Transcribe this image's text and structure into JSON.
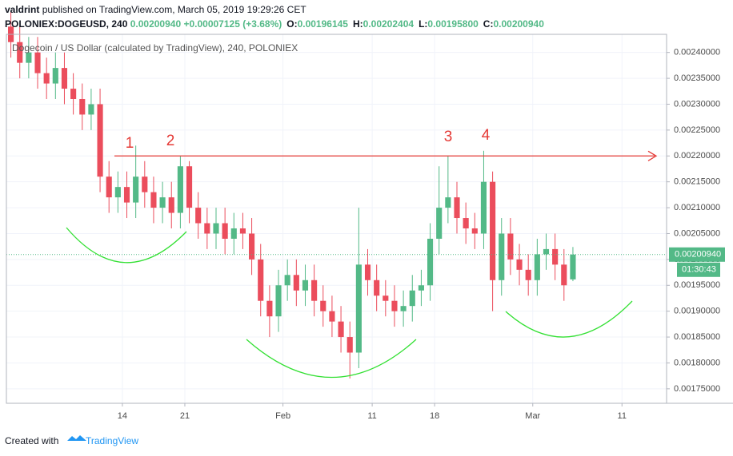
{
  "header": {
    "publisher": "valdrint",
    "published_text": "published on TradingView.com, March 05, 2019 19:29:26 CET",
    "symbol": "POLONIEX:DOGEUSD, 240",
    "last": "0.00200940",
    "change": "+0.00007125 (+3.68%)",
    "ohlc": [
      {
        "label": "O:",
        "value": "0.00196145"
      },
      {
        "label": "H:",
        "value": "0.00202404"
      },
      {
        "label": "L:",
        "value": "0.00195800"
      },
      {
        "label": "C:",
        "value": "0.00200940"
      }
    ]
  },
  "chart_data": {
    "type": "candlestick",
    "legend": "Dogecoin / US Dollar (calculated by TradingView), 240, POLONIEX",
    "up_color": "#53b987",
    "down_color": "#eb4d5c",
    "x": [
      "2019-01-01",
      "2019-01-02",
      "2019-01-03",
      "2019-01-04",
      "2019-01-05",
      "2019-01-06",
      "2019-01-07",
      "2019-01-08",
      "2019-01-09",
      "2019-01-10",
      "2019-01-11",
      "2019-01-12",
      "2019-01-13",
      "2019-01-14",
      "2019-01-15",
      "2019-01-16",
      "2019-01-17",
      "2019-01-18",
      "2019-01-19",
      "2019-01-20",
      "2019-01-21",
      "2019-01-22",
      "2019-01-23",
      "2019-01-24",
      "2019-01-25",
      "2019-01-26",
      "2019-01-27",
      "2019-01-28",
      "2019-01-29",
      "2019-01-30",
      "2019-01-31",
      "2019-02-01",
      "2019-02-02",
      "2019-02-03",
      "2019-02-04",
      "2019-02-05",
      "2019-02-06",
      "2019-02-07",
      "2019-02-08",
      "2019-02-09",
      "2019-02-10",
      "2019-02-11",
      "2019-02-12",
      "2019-02-13",
      "2019-02-14",
      "2019-02-15",
      "2019-02-16",
      "2019-02-17",
      "2019-02-18",
      "2019-02-19",
      "2019-02-20",
      "2019-02-21",
      "2019-02-22",
      "2019-02-23",
      "2019-02-24",
      "2019-02-25",
      "2019-02-26",
      "2019-02-27",
      "2019-02-28",
      "2019-03-01",
      "2019-03-02",
      "2019-03-03",
      "2019-03-04",
      "2019-03-05"
    ],
    "open": [
      0.00245,
      0.00242,
      0.00238,
      0.0024,
      0.00236,
      0.00234,
      0.00237,
      0.00233,
      0.00231,
      0.00228,
      0.0023,
      0.00216,
      0.00212,
      0.00214,
      0.00211,
      0.00216,
      0.00213,
      0.0021,
      0.00212,
      0.00209,
      0.00218,
      0.0021,
      0.00207,
      0.00205,
      0.00207,
      0.00204,
      0.00206,
      0.00205,
      0.002,
      0.00192,
      0.00189,
      0.00195,
      0.00197,
      0.00194,
      0.00196,
      0.00192,
      0.0019,
      0.00188,
      0.00185,
      0.00182,
      0.00199,
      0.00196,
      0.00193,
      0.00192,
      0.0019,
      0.00191,
      0.00194,
      0.00195,
      0.00204,
      0.0021,
      0.00212,
      0.00208,
      0.00206,
      0.00205,
      0.00215,
      0.00196,
      0.00205,
      0.002,
      0.00198,
      0.00196,
      0.00201,
      0.00202,
      0.00199,
      0.00196145
    ],
    "high": [
      0.00248,
      0.00245,
      0.00243,
      0.00243,
      0.00239,
      0.0024,
      0.0024,
      0.00236,
      0.00234,
      0.00233,
      0.00233,
      0.00219,
      0.00217,
      0.00217,
      0.00222,
      0.00219,
      0.00216,
      0.00215,
      0.00215,
      0.0022,
      0.00219,
      0.00213,
      0.0021,
      0.0021,
      0.0021,
      0.00209,
      0.00209,
      0.00208,
      0.00203,
      0.00195,
      0.00198,
      0.002,
      0.002,
      0.00199,
      0.00199,
      0.00195,
      0.00193,
      0.00191,
      0.00188,
      0.0021,
      0.00202,
      0.00199,
      0.00196,
      0.00195,
      0.00194,
      0.00197,
      0.00198,
      0.00207,
      0.00218,
      0.0022,
      0.00215,
      0.00211,
      0.00209,
      0.00221,
      0.00217,
      0.00208,
      0.00208,
      0.00203,
      0.00201,
      0.00204,
      0.00205,
      0.00205,
      0.00202,
      0.00202404
    ],
    "low": [
      0.00239,
      0.00235,
      0.00235,
      0.00233,
      0.00231,
      0.00231,
      0.0023,
      0.00228,
      0.00225,
      0.00225,
      0.00213,
      0.00209,
      0.00209,
      0.00208,
      0.00208,
      0.0021,
      0.00207,
      0.00207,
      0.00206,
      0.00206,
      0.00207,
      0.00204,
      0.00202,
      0.00202,
      0.00201,
      0.00201,
      0.00202,
      0.00197,
      0.00189,
      0.00185,
      0.00186,
      0.00192,
      0.00191,
      0.00191,
      0.00189,
      0.00187,
      0.00185,
      0.00182,
      0.00177,
      0.00179,
      0.00193,
      0.0019,
      0.00189,
      0.00187,
      0.00187,
      0.00188,
      0.00191,
      0.00192,
      0.00201,
      0.00207,
      0.00205,
      0.00203,
      0.00202,
      0.00202,
      0.0019,
      0.00193,
      0.00197,
      0.00195,
      0.00193,
      0.00193,
      0.00198,
      0.00196,
      0.00192,
      0.001958
    ],
    "close": [
      0.00242,
      0.00238,
      0.0024,
      0.00236,
      0.00234,
      0.00237,
      0.00233,
      0.00231,
      0.00228,
      0.0023,
      0.00216,
      0.00212,
      0.00214,
      0.00211,
      0.00216,
      0.00213,
      0.0021,
      0.00212,
      0.00209,
      0.00218,
      0.0021,
      0.00207,
      0.00205,
      0.00207,
      0.00204,
      0.00206,
      0.00205,
      0.002,
      0.00192,
      0.00189,
      0.00195,
      0.00197,
      0.00194,
      0.00196,
      0.00192,
      0.0019,
      0.00188,
      0.00185,
      0.00182,
      0.00199,
      0.00196,
      0.00193,
      0.00192,
      0.0019,
      0.00191,
      0.00194,
      0.00195,
      0.00204,
      0.0021,
      0.00212,
      0.00208,
      0.00206,
      0.00205,
      0.00215,
      0.00196,
      0.00205,
      0.002,
      0.00198,
      0.00196,
      0.00201,
      0.00202,
      0.00199,
      0.00195,
      0.0020094
    ],
    "last_value_label": "0.00200940",
    "countdown": "01:30:43",
    "resistance": 0.0022,
    "annotations": [
      "1",
      "2",
      "3",
      "4"
    ],
    "xlim": [
      "2019-01-01",
      "2019-03-16"
    ],
    "xticks": [
      {
        "value": "2019-01-14",
        "label": "14"
      },
      {
        "value": "2019-01-21",
        "label": "21"
      },
      {
        "value": "2019-02-01",
        "label": "Feb"
      },
      {
        "value": "2019-02-11",
        "label": "11"
      },
      {
        "value": "2019-02-18",
        "label": "18"
      },
      {
        "value": "2019-03-01",
        "label": "Mar"
      },
      {
        "value": "2019-03-11",
        "label": "11"
      }
    ],
    "ylim": [
      0.001722,
      0.002435
    ],
    "yticks": [
      {
        "value": 0.00175,
        "label": "0.00175000"
      },
      {
        "value": 0.0018,
        "label": "0.00180000"
      },
      {
        "value": 0.00185,
        "label": "0.00185000"
      },
      {
        "value": 0.0019,
        "label": "0.00190000"
      },
      {
        "value": 0.00195,
        "label": "0.00195000"
      },
      {
        "value": 0.002,
        "label": "0.00200000"
      },
      {
        "value": 0.00205,
        "label": "0.00205000"
      },
      {
        "value": 0.0021,
        "label": "0.00210000"
      },
      {
        "value": 0.00215,
        "label": "0.00215000"
      },
      {
        "value": 0.0022,
        "label": "0.00220000"
      },
      {
        "value": 0.00225,
        "label": "0.00225000"
      },
      {
        "value": 0.0023,
        "label": "0.00230000"
      },
      {
        "value": 0.00235,
        "label": "0.00235000"
      },
      {
        "value": 0.0024,
        "label": "0.00240000"
      }
    ],
    "grid": true
  },
  "footer": {
    "text": "Created with",
    "brand": "TradingView"
  }
}
